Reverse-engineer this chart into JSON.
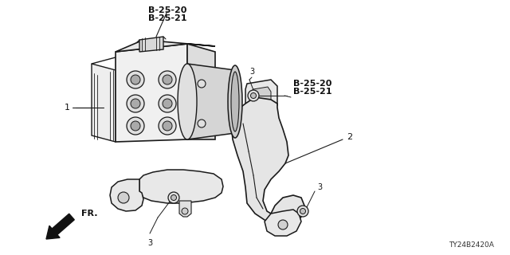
{
  "bg_color": "#ffffff",
  "diagram_code": "TY24B2420A",
  "labels": {
    "part1": "1",
    "part2": "2",
    "part3a": "3",
    "part3b": "3",
    "part3c": "3",
    "ref_top1": "B-25-20",
    "ref_top2": "B-25-21",
    "ref_mid1": "B-25-20",
    "ref_mid2": "B-25-21",
    "fr_label": "FR."
  },
  "line_color": "#1a1a1a",
  "text_color": "#111111"
}
